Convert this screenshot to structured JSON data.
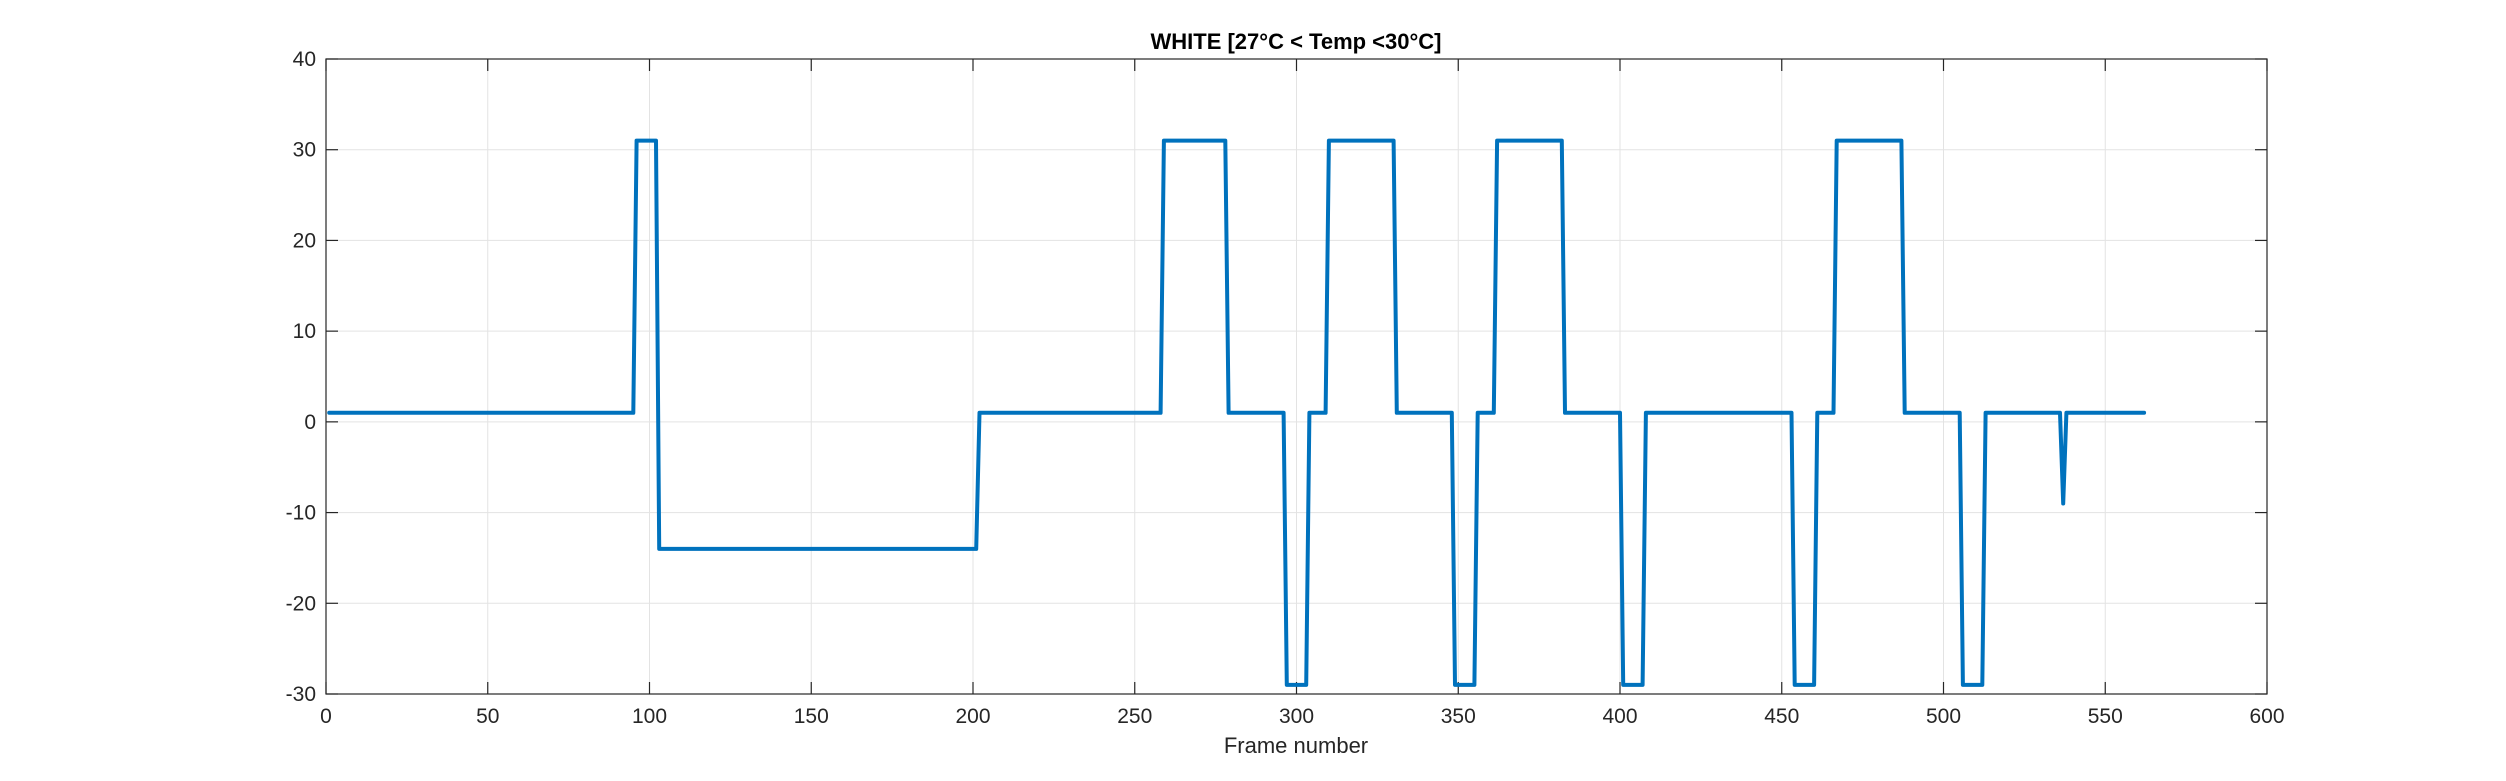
{
  "colors": {
    "series": "#0072BD",
    "grid": "#e3e3e3",
    "axis": "#262626",
    "background": "#ffffff"
  },
  "chart_data": {
    "type": "line",
    "title": "WHITE [27°C < Temp <30°C]",
    "xlabel": "Frame number",
    "ylabel": "",
    "xlim": [
      0,
      600
    ],
    "ylim": [
      -30,
      40
    ],
    "xticks": [
      0,
      50,
      100,
      150,
      200,
      250,
      300,
      350,
      400,
      450,
      500,
      550,
      600
    ],
    "yticks": [
      -30,
      -20,
      -10,
      0,
      10,
      20,
      30,
      40
    ],
    "grid": true,
    "series": [
      {
        "x": [
          1,
          95,
          96,
          102,
          103,
          201,
          202,
          258,
          259,
          278,
          279,
          296,
          297,
          303,
          304,
          309,
          310,
          330,
          331,
          348,
          349,
          355,
          356,
          361,
          362,
          382,
          383,
          400,
          401,
          407,
          408,
          453,
          454,
          460,
          461,
          466,
          467,
          487,
          488,
          505,
          506,
          512,
          513,
          536,
          537,
          538,
          562
        ],
        "y": [
          1,
          1,
          31,
          31,
          -14,
          -14,
          1,
          1,
          31,
          31,
          1,
          1,
          -29,
          -29,
          1,
          1,
          31,
          31,
          1,
          1,
          -29,
          -29,
          1,
          1,
          31,
          31,
          1,
          1,
          -29,
          -29,
          1,
          1,
          -29,
          -29,
          1,
          1,
          31,
          31,
          1,
          1,
          -29,
          -29,
          1,
          1,
          -9,
          1,
          1
        ]
      }
    ]
  }
}
